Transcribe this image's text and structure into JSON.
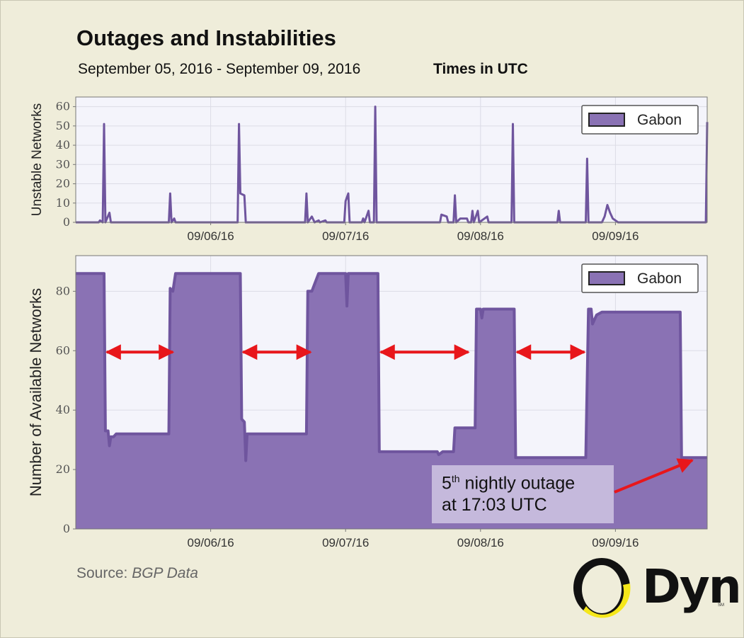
{
  "header": {
    "title": "Outages and Instabilities",
    "date_range": "September 05, 2016 - September 09, 2016",
    "timezone": "Times in UTC"
  },
  "source": {
    "label": "Source:",
    "value": "BGP Data"
  },
  "logo": {
    "text": "Dyn",
    "mark": "SM"
  },
  "annotation": {
    "ordinal": "5",
    "suffix": "th",
    "line1_rest": " nightly outage",
    "line2": "at 17:03 UTC"
  },
  "colors": {
    "series": "#6f559e",
    "fill": "#8a72b4",
    "plot_bg": "#f4f4fb",
    "arrow": "#e8161b"
  },
  "chart_data": [
    {
      "type": "line",
      "ylabel": "Unstable Networks",
      "ylim": [
        0,
        65
      ],
      "yticks": [
        0,
        10,
        20,
        30,
        40,
        50,
        60
      ],
      "xlim": [
        5.0,
        9.68
      ],
      "xticks": [
        {
          "x": 6.0,
          "label": "09/06/16"
        },
        {
          "x": 7.0,
          "label": "09/07/16"
        },
        {
          "x": 8.0,
          "label": "09/08/16"
        },
        {
          "x": 9.0,
          "label": "09/09/16"
        }
      ],
      "legend": "top-right",
      "series": [
        {
          "name": "Gabon",
          "points": [
            [
              5.0,
              0
            ],
            [
              5.17,
              0
            ],
            [
              5.18,
              1
            ],
            [
              5.2,
              0
            ],
            [
              5.21,
              51
            ],
            [
              5.22,
              0
            ],
            [
              5.25,
              5
            ],
            [
              5.26,
              0
            ],
            [
              5.69,
              0
            ],
            [
              5.7,
              15
            ],
            [
              5.71,
              0
            ],
            [
              5.73,
              2
            ],
            [
              5.74,
              0
            ],
            [
              6.2,
              0
            ],
            [
              6.21,
              51
            ],
            [
              6.22,
              15
            ],
            [
              6.25,
              14
            ],
            [
              6.26,
              0
            ],
            [
              6.7,
              0
            ],
            [
              6.71,
              15
            ],
            [
              6.72,
              0
            ],
            [
              6.75,
              3
            ],
            [
              6.77,
              0
            ],
            [
              6.8,
              1
            ],
            [
              6.81,
              0
            ],
            [
              6.85,
              1
            ],
            [
              6.86,
              0
            ],
            [
              6.99,
              0
            ],
            [
              7.0,
              11
            ],
            [
              7.02,
              15
            ],
            [
              7.03,
              0
            ],
            [
              7.12,
              0
            ],
            [
              7.13,
              2
            ],
            [
              7.14,
              0
            ],
            [
              7.17,
              6
            ],
            [
              7.18,
              0
            ],
            [
              7.21,
              0
            ],
            [
              7.22,
              60
            ],
            [
              7.23,
              0
            ],
            [
              7.7,
              0
            ],
            [
              7.71,
              4
            ],
            [
              7.75,
              3
            ],
            [
              7.76,
              0
            ],
            [
              7.8,
              0
            ],
            [
              7.81,
              14
            ],
            [
              7.82,
              0
            ],
            [
              7.85,
              2
            ],
            [
              7.9,
              2
            ],
            [
              7.91,
              0
            ],
            [
              7.93,
              0
            ],
            [
              7.94,
              6
            ],
            [
              7.95,
              0
            ],
            [
              7.98,
              6
            ],
            [
              7.99,
              0
            ],
            [
              8.05,
              3
            ],
            [
              8.06,
              0
            ],
            [
              8.23,
              0
            ],
            [
              8.24,
              51
            ],
            [
              8.25,
              0
            ],
            [
              8.57,
              0
            ],
            [
              8.58,
              6
            ],
            [
              8.59,
              0
            ],
            [
              8.78,
              0
            ],
            [
              8.79,
              33
            ],
            [
              8.8,
              0
            ],
            [
              8.9,
              0
            ],
            [
              8.92,
              3
            ],
            [
              8.94,
              9
            ],
            [
              8.96,
              5
            ],
            [
              8.98,
              2
            ],
            [
              9.0,
              1
            ],
            [
              9.02,
              0
            ],
            [
              9.67,
              0
            ],
            [
              9.68,
              52
            ]
          ]
        }
      ]
    },
    {
      "type": "area",
      "ylabel": "Number of Available Networks",
      "ylim": [
        0,
        92
      ],
      "yticks": [
        0,
        20,
        40,
        60,
        80
      ],
      "xlim": [
        5.0,
        9.68
      ],
      "xticks": [
        {
          "x": 6.0,
          "label": "09/06/16"
        },
        {
          "x": 7.0,
          "label": "09/07/16"
        },
        {
          "x": 8.0,
          "label": "09/08/16"
        },
        {
          "x": 9.0,
          "label": "09/09/16"
        }
      ],
      "legend": "top-right",
      "series": [
        {
          "name": "Gabon",
          "points": [
            [
              5.0,
              86
            ],
            [
              5.21,
              86
            ],
            [
              5.22,
              33
            ],
            [
              5.24,
              33
            ],
            [
              5.25,
              28
            ],
            [
              5.26,
              31
            ],
            [
              5.28,
              31
            ],
            [
              5.3,
              32
            ],
            [
              5.69,
              32
            ],
            [
              5.7,
              81
            ],
            [
              5.72,
              80
            ],
            [
              5.74,
              86
            ],
            [
              6.22,
              86
            ],
            [
              6.23,
              37
            ],
            [
              6.25,
              36
            ],
            [
              6.26,
              23
            ],
            [
              6.27,
              32
            ],
            [
              6.71,
              32
            ],
            [
              6.72,
              80
            ],
            [
              6.75,
              80
            ],
            [
              6.8,
              86
            ],
            [
              7.0,
              86
            ],
            [
              7.01,
              75
            ],
            [
              7.02,
              86
            ],
            [
              7.24,
              86
            ],
            [
              7.25,
              26
            ],
            [
              7.68,
              26
            ],
            [
              7.69,
              25
            ],
            [
              7.72,
              26
            ],
            [
              7.8,
              26
            ],
            [
              7.81,
              34
            ],
            [
              7.96,
              34
            ],
            [
              7.97,
              74
            ],
            [
              8.0,
              74
            ],
            [
              8.01,
              71
            ],
            [
              8.02,
              74
            ],
            [
              8.25,
              74
            ],
            [
              8.26,
              24
            ],
            [
              8.78,
              24
            ],
            [
              8.8,
              74
            ],
            [
              8.82,
              74
            ],
            [
              8.83,
              69
            ],
            [
              8.86,
              72
            ],
            [
              8.9,
              73
            ],
            [
              9.0,
              73
            ],
            [
              9.48,
              73
            ],
            [
              9.49,
              24
            ],
            [
              9.68,
              24
            ]
          ]
        }
      ]
    }
  ],
  "outage_arrows": [
    [
      5.23,
      5.72
    ],
    [
      6.24,
      6.74
    ],
    [
      7.26,
      7.91
    ],
    [
      8.27,
      8.77
    ]
  ]
}
